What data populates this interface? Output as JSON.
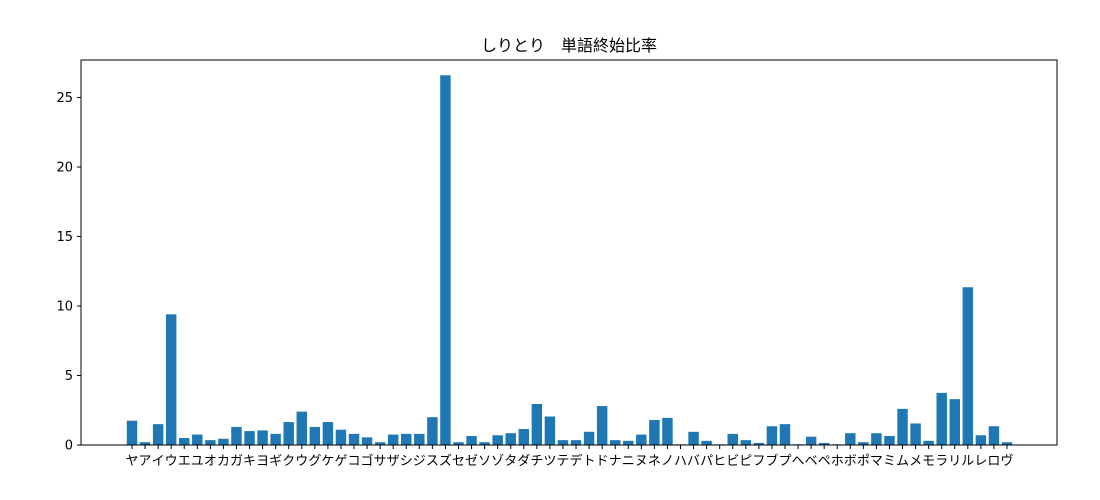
{
  "chart_data": {
    "type": "bar",
    "title": "しりとり　単語終始比率",
    "xlabel": "",
    "ylabel": "",
    "ylim": [
      0,
      27.7
    ],
    "yticks": [
      0,
      5,
      10,
      15,
      20,
      25
    ],
    "grid": false,
    "bar_color": "#1f77b4",
    "categories": [
      "ヤ",
      "ア",
      "イ",
      "ウ",
      "エ",
      "ユ",
      "オ",
      "カ",
      "ガ",
      "キ",
      "ヨ",
      "ギ",
      "ク",
      "ウ",
      "グ",
      "ケ",
      "ゲ",
      "コ",
      "ゴ",
      "サ",
      "ザ",
      "シ",
      "ジ",
      "ス",
      "ズ",
      "セ",
      "ゼ",
      "ソ",
      "ゾ",
      "タ",
      "ダ",
      "チ",
      "ツ",
      "テ",
      "デ",
      "ト",
      "ド",
      "ナ",
      "ニ",
      "ヌ",
      "ネ",
      "ノ",
      "ハ",
      "バ",
      "パ",
      "ヒ",
      "ビ",
      "ピ",
      "フ",
      "ブ",
      "プ",
      "ヘ",
      "ベ",
      "ペ",
      "ホ",
      "ボ",
      "ポ",
      "マ",
      "ミ",
      "ム",
      "メ",
      "モ",
      "ラ",
      "リ",
      "ル",
      "レ",
      "ロ",
      "ヴ"
    ],
    "values": [
      1.75,
      0.2,
      1.5,
      9.4,
      0.5,
      0.75,
      0.35,
      0.45,
      1.3,
      1.0,
      1.05,
      0.8,
      1.65,
      2.4,
      1.3,
      1.65,
      1.1,
      0.8,
      0.55,
      0.2,
      0.75,
      0.8,
      0.8,
      2.0,
      26.6,
      0.2,
      0.65,
      0.2,
      0.7,
      0.85,
      1.15,
      2.95,
      2.05,
      0.35,
      0.35,
      0.95,
      2.8,
      0.35,
      0.3,
      0.75,
      1.8,
      1.95,
      0.05,
      0.95,
      0.3,
      0.05,
      0.8,
      0.35,
      0.15,
      1.35,
      1.5,
      0.05,
      0.6,
      0.15,
      0.05,
      0.85,
      0.2,
      0.85,
      0.65,
      2.6,
      1.55,
      0.3,
      3.75,
      3.3,
      11.35,
      0.7,
      1.35,
      0.2
    ]
  }
}
